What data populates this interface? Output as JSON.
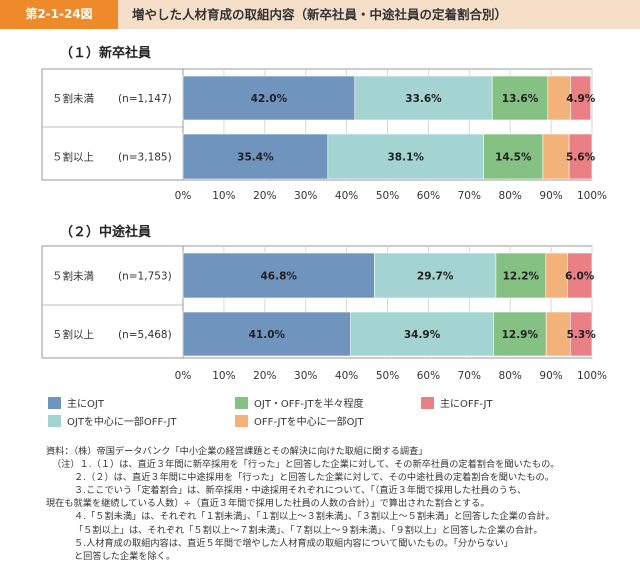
{
  "header": {
    "figure_number": "第2-1-24図",
    "title": "増やした人材育成の取組内容（新卒社員・中途社員の定着割合別）"
  },
  "colors": {
    "series": [
      "#6f94be",
      "#a4d4d2",
      "#86c184",
      "#f2b27a",
      "#ea7f85"
    ],
    "header_bg": "#f6dfc8",
    "header_accent": "#ee8a2a"
  },
  "chart_data": [
    {
      "type": "bar",
      "orientation": "horizontal",
      "stacked": true,
      "title": "（１）新卒社員",
      "categories": [
        {
          "label": "５割未満",
          "n": "(n=1,147)"
        },
        {
          "label": "５割以上",
          "n": "(n=3,185)"
        }
      ],
      "series": [
        {
          "name": "主にOJT",
          "values": [
            42.0,
            35.4
          ]
        },
        {
          "name": "OJTを中心に一部OFF-JT",
          "values": [
            33.6,
            38.1
          ]
        },
        {
          "name": "OJT・OFF-JTを半々程度",
          "values": [
            13.6,
            14.5
          ]
        },
        {
          "name": "OFF-JTを中心に一部OJT",
          "values": [
            5.6,
            6.4
          ]
        },
        {
          "name": "主にOFF-JT",
          "values": [
            4.9,
            5.6
          ]
        }
      ],
      "data_labels": [
        [
          "42.0%",
          "33.6%",
          "13.6%",
          "",
          "4.9%"
        ],
        [
          "35.4%",
          "38.1%",
          "14.5%",
          "",
          "5.6%"
        ]
      ],
      "xlim": [
        0,
        100
      ],
      "xticks": [
        "0%",
        "10%",
        "20%",
        "30%",
        "40%",
        "50%",
        "60%",
        "70%",
        "80%",
        "90%",
        "100%"
      ]
    },
    {
      "type": "bar",
      "orientation": "horizontal",
      "stacked": true,
      "title": "（２）中途社員",
      "categories": [
        {
          "label": "５割未満",
          "n": "(n=1,753)"
        },
        {
          "label": "５割以上",
          "n": "(n=5,468)"
        }
      ],
      "series": [
        {
          "name": "主にOJT",
          "values": [
            46.8,
            41.0
          ]
        },
        {
          "name": "OJTを中心に一部OFF-JT",
          "values": [
            29.7,
            34.9
          ]
        },
        {
          "name": "OJT・OFF-JTを半々程度",
          "values": [
            12.2,
            12.9
          ]
        },
        {
          "name": "OFF-JTを中心に一部OJT",
          "values": [
            5.3,
            5.9
          ]
        },
        {
          "name": "主にOFF-JT",
          "values": [
            6.0,
            5.3
          ]
        }
      ],
      "data_labels": [
        [
          "46.8%",
          "29.7%",
          "12.2%",
          "",
          "6.0%"
        ],
        [
          "41.0%",
          "34.9%",
          "12.9%",
          "",
          "5.3%"
        ]
      ],
      "xlim": [
        0,
        100
      ],
      "xticks": [
        "0%",
        "10%",
        "20%",
        "30%",
        "40%",
        "50%",
        "60%",
        "70%",
        "80%",
        "90%",
        "100%"
      ]
    }
  ],
  "legend": {
    "placement": "bottom",
    "items": [
      "主にOJT",
      "OJT・OFF-JTを半々程度",
      "主にOFF-JT",
      "OJTを中心に一部OFF-JT",
      "OFF-JTを中心に一部OJT"
    ]
  },
  "notes": [
    "資料：（株）帝国データバンク「中小企業の経営課題とその解決に向けた取組に関する調査」",
    "（注）１.（１）は、直近３年間に新卒採用を「行った」と回答した企業に対して、その新卒社員の定着割合を聞いたもの。",
    "２.（２）は、直近３年間に中途採用を「行った」と回答した企業に対して、その中途社員の定着割合を聞いたもの。",
    "３.ここでいう「定着割合」は、新卒採用・中途採用それぞれについて、「（直近３年間で採用した社員のうち、",
    "現在も就業を継続している人数）÷（直近３年間で採用した社員の人数の合計）」で算出された割合とする。",
    "４.「５割未満」は、それぞれ「１割未満」、「１割以上～３割未満」、「３割以上～５割未満」と回答した企業の合計。",
    "「５割以上」は、それぞれ「５割以上～７割未満」、「７割以上～９割未満」、「９割以上」と回答した企業の合計。",
    "５.人材育成の取組内容は、直近５年間で増やした人材育成の取組内容について聞いたもの。「分からない」",
    "と回答した企業を除く。"
  ]
}
